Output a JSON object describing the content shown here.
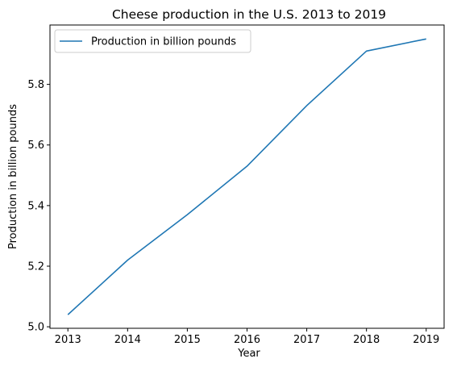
{
  "chart_data": {
    "type": "line",
    "title": "Cheese production in the U.S. 2013 to 2019",
    "xlabel": "Year",
    "ylabel": "Production in billion pounds",
    "x": [
      2013,
      2014,
      2015,
      2016,
      2017,
      2018,
      2019
    ],
    "series": [
      {
        "name": "Production in billion pounds",
        "values": [
          5.04,
          5.22,
          5.37,
          5.53,
          5.73,
          5.91,
          5.95
        ],
        "color": "#1f77b4"
      }
    ],
    "x_ticks": [
      "2013",
      "2014",
      "2015",
      "2016",
      "2017",
      "2018",
      "2019"
    ],
    "y_ticks": [
      "5.0",
      "5.2",
      "5.4",
      "5.6",
      "5.8"
    ],
    "xlim": [
      2012.7,
      2019.3
    ],
    "ylim": [
      4.995,
      5.996
    ],
    "grid": false,
    "legend_position": "upper left"
  }
}
